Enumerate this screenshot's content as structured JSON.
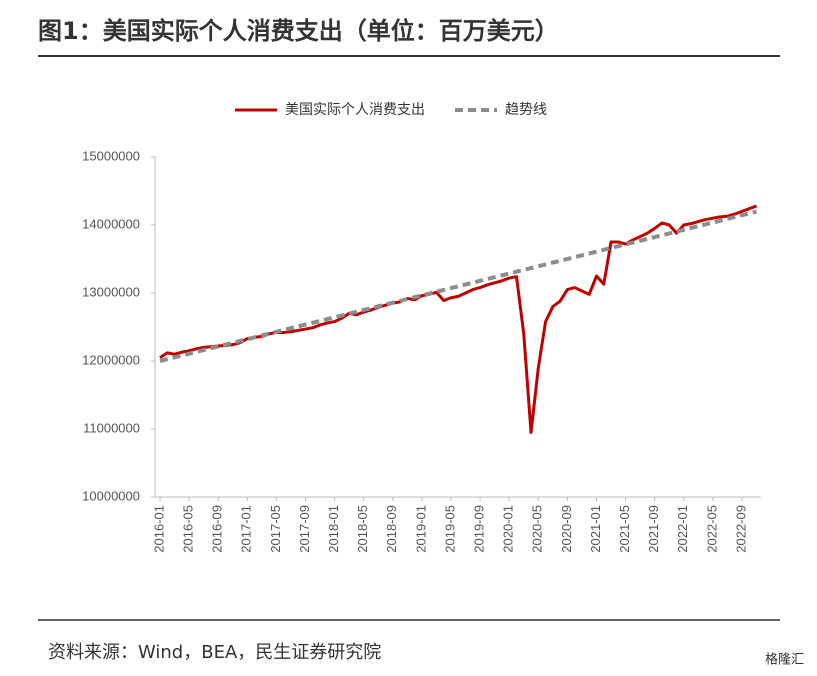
{
  "title": "图1：美国实际个人消费支出（单位：百万美元）",
  "source": "资料来源：Wind，BEA，民生证券研究院",
  "watermark": "格隆汇",
  "chart_data": {
    "type": "line",
    "categories": [
      "2016-01",
      null,
      null,
      null,
      "2016-05",
      null,
      null,
      null,
      "2016-09",
      null,
      null,
      null,
      "2017-01",
      null,
      null,
      null,
      "2017-05",
      null,
      null,
      null,
      "2017-09",
      null,
      null,
      null,
      "2018-01",
      null,
      null,
      null,
      "2018-05",
      null,
      null,
      null,
      "2018-09",
      null,
      null,
      null,
      "2019-01",
      null,
      null,
      null,
      "2019-05",
      null,
      null,
      null,
      "2019-09",
      null,
      null,
      null,
      "2020-01",
      null,
      null,
      null,
      "2020-05",
      null,
      null,
      null,
      "2020-09",
      null,
      null,
      null,
      "2021-01",
      null,
      null,
      null,
      "2021-05",
      null,
      null,
      null,
      "2021-09",
      null,
      null,
      null,
      "2022-01",
      null,
      null,
      null,
      "2022-05",
      null,
      null,
      null,
      "2022-09",
      null,
      null
    ],
    "series": [
      {
        "name": "美国实际个人消费支出",
        "color": "#c00000",
        "dashed": false,
        "values": [
          12050000,
          12120000,
          12100000,
          12130000,
          12150000,
          12180000,
          12200000,
          12210000,
          12220000,
          12230000,
          12240000,
          12270000,
          12330000,
          12350000,
          12360000,
          12400000,
          12420000,
          12420000,
          12430000,
          12450000,
          12470000,
          12490000,
          12530000,
          12560000,
          12580000,
          12630000,
          12700000,
          12680000,
          12720000,
          12750000,
          12790000,
          12820000,
          12850000,
          12870000,
          12920000,
          12900000,
          12960000,
          12980000,
          13010000,
          12890000,
          12930000,
          12950000,
          13000000,
          13050000,
          13080000,
          13120000,
          13150000,
          13180000,
          13220000,
          13240000,
          12400000,
          10950000,
          11900000,
          12580000,
          12800000,
          12880000,
          13050000,
          13080000,
          13030000,
          12980000,
          13250000,
          13130000,
          13750000,
          13750000,
          13720000,
          13780000,
          13830000,
          13880000,
          13950000,
          14030000,
          14000000,
          13880000,
          14000000,
          14020000,
          14050000,
          14080000,
          14100000,
          14120000,
          14130000,
          14160000,
          14200000,
          14240000,
          14280000
        ]
      },
      {
        "name": "趋势线",
        "color": "#8c8c8c",
        "dashed": true,
        "values": [
          12000000,
          12026800,
          12053600,
          12080400,
          12107200,
          12134000,
          12160800,
          12187600,
          12214400,
          12241200,
          12268000,
          12294800,
          12321600,
          12348400,
          12375200,
          12402000,
          12428800,
          12455600,
          12482400,
          12509200,
          12536000,
          12562800,
          12589600,
          12616400,
          12643200,
          12670000,
          12696800,
          12723600,
          12750400,
          12777200,
          12804000,
          12830800,
          12857600,
          12884400,
          12911200,
          12938000,
          12964800,
          12991600,
          13018400,
          13045200,
          13072000,
          13098800,
          13125600,
          13152400,
          13179200,
          13206000,
          13232800,
          13259600,
          13286400,
          13313200,
          13340000,
          13366800,
          13393600,
          13420400,
          13447200,
          13474000,
          13500800,
          13527600,
          13554400,
          13581200,
          13608000,
          13634800,
          13661600,
          13688400,
          13715200,
          13742000,
          13768800,
          13795600,
          13822400,
          13849200,
          13876000,
          13902800,
          13929600,
          13956400,
          13983200,
          14010000,
          14036800,
          14063600,
          14090400,
          14117200,
          14144000,
          14170800,
          14197600
        ]
      }
    ],
    "ylim": [
      10000000,
      15000000
    ],
    "yticks": [
      10000000,
      11000000,
      12000000,
      13000000,
      14000000,
      15000000
    ],
    "grid": false,
    "legend": "top"
  }
}
